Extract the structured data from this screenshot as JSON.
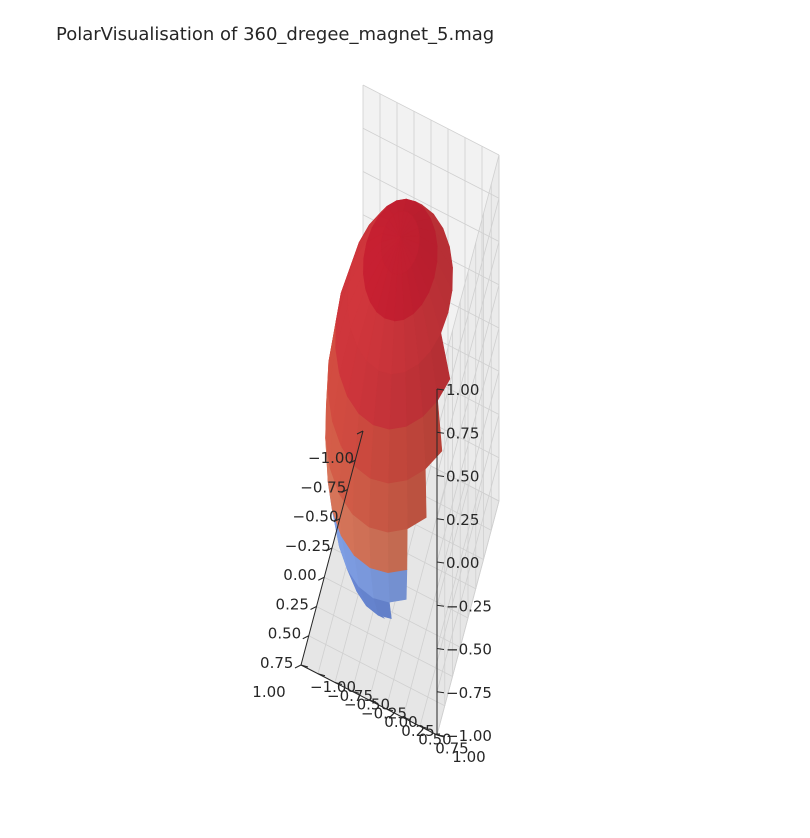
{
  "chart_data": {
    "type": "surface3d",
    "title": "PolarVisualisation of 360_dregee_magnet_5.mag",
    "xlabel": "",
    "ylabel": "",
    "zlabel": "",
    "xlim": [
      -1.0,
      1.0
    ],
    "ylim": [
      -1.0,
      1.0
    ],
    "zlim": [
      -1.0,
      1.0
    ],
    "x_ticks": [
      "−1.00",
      "−0.75",
      "−0.50",
      "−0.25",
      "0.00",
      "0.25",
      "0.50",
      "0.75",
      "1.00"
    ],
    "y_ticks": [
      "−1.00",
      "−0.75",
      "−0.50",
      "−0.25",
      "0.00",
      "0.25",
      "0.50",
      "0.75",
      "1.00"
    ],
    "z_ticks": [
      "−1.00",
      "−0.75",
      "−0.50",
      "−0.25",
      "0.00",
      "0.25",
      "0.50",
      "0.75",
      "1.00"
    ],
    "surface": "sphere",
    "radius": 1.0,
    "colormap": "coolwarm",
    "bands": [
      {
        "z_range": [
          0.85,
          1.0
        ],
        "color": "#c11f30"
      },
      {
        "z_range": [
          0.6,
          0.85
        ],
        "color": "#c9343a"
      },
      {
        "z_range": [
          0.35,
          0.6
        ],
        "color": "#d04b40"
      },
      {
        "z_range": [
          0.1,
          0.35
        ],
        "color": "#d85f4a"
      },
      {
        "z_range": [
          -0.1,
          0.1
        ],
        "color": "#df7056"
      },
      {
        "z_range": [
          -0.35,
          -0.1
        ],
        "color": "#e47c5f"
      },
      {
        "z_range": [
          -0.6,
          -0.35
        ],
        "color": "#8db0fe"
      },
      {
        "z_range": [
          -0.85,
          -0.6
        ],
        "color": "#7b9ff9"
      },
      {
        "z_range": [
          -1.0,
          -0.85
        ],
        "color": "#6f92f3"
      }
    ],
    "grid": true,
    "pane_color": "#f2f2f2",
    "grid_color": "#d0d0d0"
  }
}
